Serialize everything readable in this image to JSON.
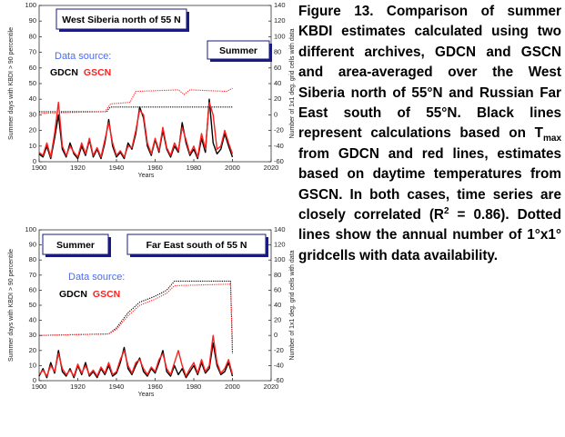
{
  "chart_data": [
    {
      "type": "line",
      "title": "West Siberia north of 55 N",
      "season_label": "Summer",
      "legend_title": "Data source:",
      "xlabel": "Years",
      "ylabel": "Summer days with KBDI > 90 percentile",
      "y2label": "Number of 1x1 deg. grid cells with data",
      "xlim": [
        1900,
        2020
      ],
      "xticks": [
        1900,
        1920,
        1940,
        1960,
        1980,
        2000,
        2020
      ],
      "ylim": [
        0,
        100
      ],
      "yticks": [
        0,
        10,
        20,
        30,
        40,
        50,
        60,
        70,
        80,
        90,
        100
      ],
      "y2lim": [
        -60,
        140
      ],
      "y2ticks": [
        -60,
        -40,
        -20,
        0,
        20,
        40,
        60,
        80,
        100,
        120,
        140
      ],
      "x": [
        1900,
        1902,
        1904,
        1906,
        1908,
        1910,
        1912,
        1914,
        1916,
        1918,
        1920,
        1922,
        1924,
        1926,
        1928,
        1930,
        1932,
        1934,
        1936,
        1938,
        1940,
        1942,
        1944,
        1946,
        1948,
        1950,
        1952,
        1954,
        1956,
        1958,
        1960,
        1962,
        1964,
        1966,
        1968,
        1970,
        1972,
        1974,
        1976,
        1978,
        1980,
        1982,
        1984,
        1986,
        1988,
        1990,
        1992,
        1994,
        1996,
        1998,
        2000
      ],
      "series": [
        {
          "name": "GDCN",
          "color": "#000000",
          "values": [
            5,
            3,
            10,
            2,
            15,
            30,
            8,
            3,
            12,
            5,
            2,
            10,
            4,
            14,
            3,
            8,
            2,
            12,
            27,
            10,
            3,
            6,
            2,
            12,
            8,
            18,
            35,
            28,
            10,
            4,
            14,
            6,
            20,
            8,
            3,
            10,
            6,
            25,
            12,
            4,
            8,
            2,
            15,
            6,
            40,
            12,
            5,
            8,
            18,
            10,
            3
          ]
        },
        {
          "name": "GSCN",
          "color": "#ff2020",
          "values": [
            6,
            4,
            12,
            3,
            18,
            38,
            10,
            4,
            10,
            6,
            3,
            12,
            5,
            15,
            4,
            9,
            3,
            14,
            25,
            12,
            4,
            7,
            3,
            10,
            9,
            20,
            33,
            30,
            12,
            5,
            15,
            7,
            22,
            9,
            4,
            12,
            7,
            22,
            14,
            5,
            10,
            3,
            18,
            8,
            38,
            30,
            8,
            10,
            20,
            12,
            5
          ]
        }
      ],
      "gridcell_series": [
        {
          "color": "#000000",
          "axis": "y2",
          "style": "dotted",
          "x": [
            1900,
            1935,
            1936,
            1937,
            2000
          ],
          "values": [
            4,
            4,
            8,
            10,
            10
          ]
        },
        {
          "color": "#ff2020",
          "axis": "y2",
          "style": "dotted",
          "x": [
            1900,
            1934,
            1937,
            1947,
            1950,
            1972,
            1975,
            1978,
            1997,
            2000
          ],
          "values": [
            2,
            4,
            14,
            16,
            30,
            32,
            26,
            32,
            30,
            34
          ]
        }
      ]
    },
    {
      "type": "line",
      "title": "Far East south of 55 N",
      "season_label": "Summer",
      "legend_title": "Data source:",
      "xlabel": "Years",
      "ylabel": "Summer days with KBDI > 90 percentile",
      "y2label": "Number of 1x1 deg. grid cells with data",
      "xlim": [
        1900,
        2020
      ],
      "xticks": [
        1900,
        1920,
        1940,
        1960,
        1980,
        2000,
        2020
      ],
      "ylim": [
        0,
        100
      ],
      "yticks": [
        0,
        10,
        20,
        30,
        40,
        50,
        60,
        70,
        80,
        90,
        100
      ],
      "y2lim": [
        -60,
        140
      ],
      "y2ticks": [
        -60,
        -40,
        -20,
        0,
        20,
        40,
        60,
        80,
        100,
        120,
        140
      ],
      "x": [
        1900,
        1902,
        1904,
        1906,
        1908,
        1910,
        1912,
        1914,
        1916,
        1918,
        1920,
        1922,
        1924,
        1926,
        1928,
        1930,
        1932,
        1934,
        1936,
        1938,
        1940,
        1942,
        1944,
        1946,
        1948,
        1950,
        1952,
        1954,
        1956,
        1958,
        1960,
        1962,
        1964,
        1966,
        1968,
        1970,
        1972,
        1974,
        1976,
        1978,
        1980,
        1982,
        1984,
        1986,
        1988,
        1990,
        1992,
        1994,
        1996,
        1998,
        2000
      ],
      "series": [
        {
          "name": "GDCN",
          "color": "#000000",
          "values": [
            3,
            8,
            2,
            12,
            5,
            20,
            6,
            3,
            8,
            2,
            10,
            4,
            12,
            3,
            6,
            2,
            8,
            4,
            10,
            3,
            5,
            12,
            22,
            8,
            4,
            10,
            15,
            6,
            3,
            8,
            5,
            12,
            20,
            6,
            3,
            10,
            4,
            8,
            2,
            6,
            10,
            4,
            12,
            5,
            8,
            25,
            10,
            4,
            6,
            12,
            3
          ]
        },
        {
          "name": "GSCN",
          "color": "#ff2020",
          "values": [
            4,
            7,
            3,
            10,
            6,
            18,
            8,
            4,
            7,
            3,
            11,
            5,
            10,
            4,
            7,
            3,
            9,
            5,
            12,
            4,
            6,
            14,
            20,
            10,
            5,
            12,
            14,
            8,
            4,
            9,
            6,
            14,
            18,
            8,
            4,
            12,
            20,
            10,
            3,
            8,
            12,
            5,
            14,
            6,
            10,
            30,
            12,
            5,
            8,
            14,
            4
          ]
        }
      ],
      "gridcell_series": [
        {
          "color": "#000000",
          "axis": "y2",
          "style": "dotted",
          "x": [
            1900,
            1936,
            1940,
            1946,
            1952,
            1960,
            1966,
            1970,
            1999,
            2000
          ],
          "values": [
            0,
            2,
            10,
            30,
            44,
            52,
            60,
            72,
            72,
            -24
          ]
        },
        {
          "color": "#ff2020",
          "axis": "y2",
          "style": "dotted",
          "x": [
            1900,
            1936,
            1940,
            1946,
            1952,
            1960,
            1966,
            1970,
            1999,
            2000
          ],
          "values": [
            0,
            2,
            8,
            26,
            40,
            48,
            56,
            66,
            68,
            -10
          ]
        }
      ]
    }
  ],
  "caption": [
    "Figure 13.  Comparison of summer KBDI estimates calculated using two different archives, GDCN and GSCN and area-averaged over the West Siberia north of 55°N and Russian Far East south of 55°N. Black lines represent calculations based on T",
    "max",
    " from GDCN and red lines, estimates based on daytime temperatures from GSCN. In both cases, time series are closely correlated (R",
    "2",
    " = 0.86).  Dotted lines show the annual number of 1°x1° gridcells with data availability."
  ]
}
